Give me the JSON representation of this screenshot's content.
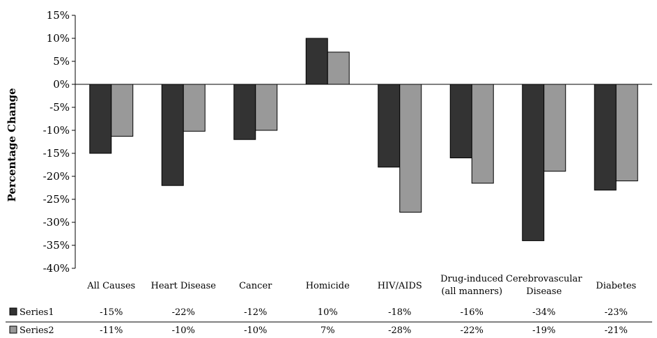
{
  "chart_data": {
    "type": "bar",
    "title": "",
    "xlabel": "",
    "ylabel": "Percentage Change",
    "ylim": [
      -40,
      15
    ],
    "yticks": [
      "15%",
      "10%",
      "5%",
      "0%",
      "-5%",
      "-10%",
      "-15%",
      "-20%",
      "-25%",
      "-30%",
      "-35%",
      "-40%"
    ],
    "grid": false,
    "legend": "data-table-bottom",
    "categories": [
      [
        "All Causes"
      ],
      [
        "Heart Disease"
      ],
      [
        "Cancer"
      ],
      [
        "Homicide"
      ],
      [
        "HIV/AIDS"
      ],
      [
        "Drug-induced",
        "(all manners)"
      ],
      [
        "Cerebrovascular",
        "Disease"
      ],
      [
        "Diabetes"
      ]
    ],
    "series": [
      {
        "name": "Series1",
        "color": "#333333",
        "values": [
          -15,
          -22,
          -12,
          10,
          -18,
          -16,
          -34,
          -23
        ],
        "labels": [
          "-15%",
          "-22%",
          "-12%",
          "10%",
          "-18%",
          "-16%",
          "-34%",
          "-23%"
        ]
      },
      {
        "name": "Series2",
        "color": "#999999",
        "values": [
          -11.3,
          -10.2,
          -10,
          7,
          -27.8,
          -21.5,
          -18.9,
          -21
        ],
        "labels": [
          "-11%",
          "-10%",
          "-10%",
          "7%",
          "-28%",
          "-22%",
          "-19%",
          "-21%"
        ]
      }
    ]
  }
}
